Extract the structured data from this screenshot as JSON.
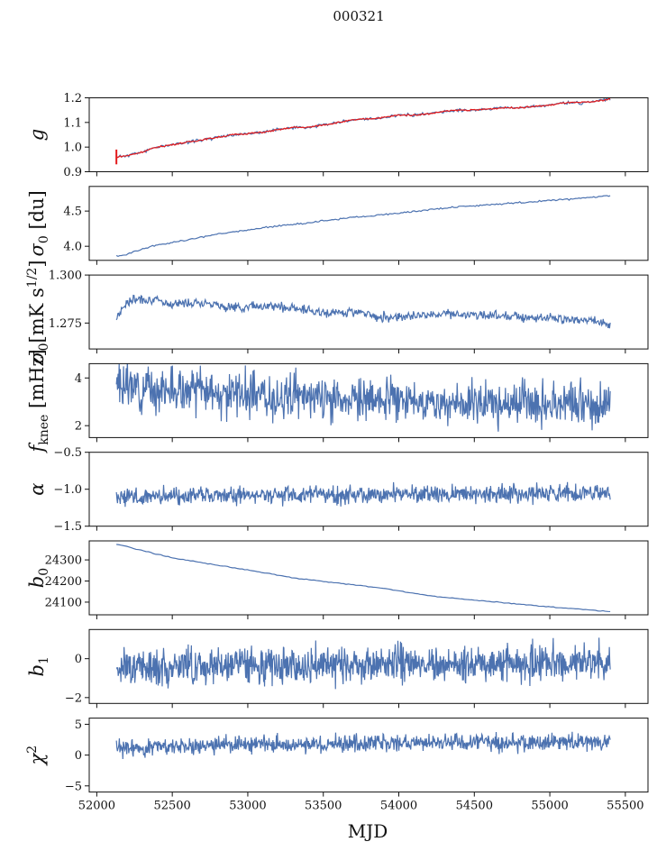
{
  "figure": {
    "title": "000321",
    "xlabel": "MJD"
  },
  "chart_data": [
    {
      "type": "line",
      "ylabel": "g",
      "x_range": [
        51950,
        55650
      ],
      "ylim": [
        0.9,
        1.2
      ],
      "y_ticks": [
        0.9,
        1.0,
        1.1,
        1.2
      ],
      "y_tick_labels": [
        "0.9",
        "1.0",
        "1.1",
        "1.2"
      ],
      "series": [
        {
          "color": "#4c72b0",
          "x": [
            52130,
            52200,
            52300,
            52400,
            52500,
            52600,
            52700,
            52800,
            52900,
            53000,
            53100,
            53200,
            53300,
            53400,
            53500,
            53600,
            53700,
            53800,
            53900,
            54000,
            54100,
            54200,
            54300,
            54400,
            54500,
            54600,
            54700,
            54800,
            54900,
            55000,
            55100,
            55200,
            55300,
            55400
          ],
          "y": [
            0.96,
            0.965,
            0.98,
            1.0,
            1.01,
            1.02,
            1.03,
            1.04,
            1.05,
            1.055,
            1.06,
            1.07,
            1.08,
            1.08,
            1.09,
            1.1,
            1.11,
            1.115,
            1.12,
            1.13,
            1.13,
            1.135,
            1.145,
            1.15,
            1.15,
            1.155,
            1.16,
            1.16,
            1.165,
            1.17,
            1.18,
            1.18,
            1.185,
            1.195
          ]
        }
      ],
      "noise": {
        "amp": 0.003,
        "n": 400,
        "x_start": 52130,
        "x_end": 55400,
        "color": "#e31a1c",
        "seed": 11
      }
    },
    {
      "type": "line",
      "ylabel": "σ0 [du]",
      "x_range": [
        51950,
        55650
      ],
      "ylim": [
        3.8,
        4.85
      ],
      "y_ticks": [
        4.0,
        4.5
      ],
      "y_tick_labels": [
        "4.0",
        "4.5"
      ],
      "series": [
        {
          "color": "#4c72b0",
          "x": [
            52130,
            52200,
            52300,
            52400,
            52600,
            52800,
            53000,
            53200,
            53400,
            53600,
            53800,
            54000,
            54200,
            54400,
            54600,
            54800,
            55000,
            55200,
            55400
          ],
          "y": [
            3.86,
            3.88,
            3.96,
            4.02,
            4.09,
            4.17,
            4.23,
            4.29,
            4.33,
            4.39,
            4.43,
            4.47,
            4.52,
            4.56,
            4.59,
            4.62,
            4.65,
            4.68,
            4.72
          ]
        }
      ],
      "noise": {
        "amp": 0.006,
        "n": 300,
        "x_start": 52130,
        "x_end": 55400,
        "seed": 5
      }
    },
    {
      "type": "line",
      "ylabel": "σ0[mK s^1/2]",
      "x_range": [
        51950,
        55650
      ],
      "ylim": [
        1.2615,
        1.3
      ],
      "y_ticks": [
        1.275,
        1.3
      ],
      "y_tick_labels": [
        "1.275",
        "1.300"
      ],
      "series": [
        {
          "color": "#4c72b0",
          "x": [
            52130,
            52200,
            52300,
            52500,
            52700,
            52900,
            53100,
            53300,
            53500,
            53700,
            53900,
            54100,
            54300,
            54500,
            54700,
            54900,
            55100,
            55300,
            55400
          ],
          "y": [
            1.278,
            1.286,
            1.288,
            1.285,
            1.286,
            1.283,
            1.284,
            1.283,
            1.28,
            1.281,
            1.278,
            1.279,
            1.28,
            1.279,
            1.279,
            1.278,
            1.277,
            1.276,
            1.274
          ]
        }
      ],
      "noise": {
        "amp": 0.0012,
        "n": 700,
        "x_start": 52130,
        "x_end": 55400,
        "seed": 7
      }
    },
    {
      "type": "line",
      "ylabel": "f_knee [mHz]",
      "x_range": [
        51950,
        55650
      ],
      "ylim": [
        1.5,
        4.6
      ],
      "y_ticks": [
        2,
        4
      ],
      "y_tick_labels": [
        "2",
        "4"
      ],
      "series": [
        {
          "color": "#4c72b0",
          "x": [
            52130,
            52500,
            53000,
            53500,
            54000,
            54500,
            55000,
            55400
          ],
          "y": [
            3.7,
            3.5,
            3.3,
            3.15,
            3.0,
            2.95,
            2.95,
            2.9
          ]
        }
      ],
      "noise": {
        "amp": 0.45,
        "n": 900,
        "x_start": 52130,
        "x_end": 55400,
        "seed": 3
      }
    },
    {
      "type": "line",
      "ylabel": "α",
      "x_range": [
        51950,
        55650
      ],
      "ylim": [
        -1.5,
        -0.5
      ],
      "y_ticks": [
        -1.5,
        -1.0,
        -0.5
      ],
      "y_tick_labels": [
        "−1.5",
        "−1.0",
        "−0.5"
      ],
      "series": [
        {
          "color": "#4c72b0",
          "x": [
            52130,
            55400
          ],
          "y": [
            -1.1,
            -1.05
          ]
        }
      ],
      "noise": {
        "amp": 0.06,
        "n": 900,
        "x_start": 52130,
        "x_end": 55400,
        "seed": 13
      }
    },
    {
      "type": "line",
      "ylabel": "b0",
      "x_range": [
        51950,
        55650
      ],
      "ylim": [
        24040,
        24390
      ],
      "y_ticks": [
        24100,
        24200,
        24300
      ],
      "y_tick_labels": [
        "24100",
        "24200",
        "24300"
      ],
      "series": [
        {
          "color": "#4c72b0",
          "x": [
            52130,
            52300,
            52500,
            52800,
            53100,
            53300,
            53600,
            53900,
            54200,
            54500,
            54800,
            55100,
            55400
          ],
          "y": [
            24375,
            24345,
            24310,
            24275,
            24240,
            24215,
            24190,
            24165,
            24130,
            24110,
            24090,
            24072,
            24055
          ]
        }
      ],
      "noise": {
        "amp": 1.0,
        "n": 200,
        "x_start": 52130,
        "x_end": 55400,
        "seed": 2
      }
    },
    {
      "type": "line",
      "ylabel": "b1",
      "x_range": [
        51950,
        55650
      ],
      "ylim": [
        -2.3,
        1.5
      ],
      "y_ticks": [
        -2,
        0
      ],
      "y_tick_labels": [
        "−2",
        "0"
      ],
      "series": [
        {
          "color": "#4c72b0",
          "x": [
            52130,
            55400
          ],
          "y": [
            -0.4,
            -0.2
          ]
        }
      ],
      "noise": {
        "amp": 0.45,
        "n": 1100,
        "x_start": 52130,
        "x_end": 55400,
        "seed": 17
      }
    },
    {
      "type": "line",
      "ylabel": "χ^2",
      "x_range": [
        51950,
        55650
      ],
      "ylim": [
        -6,
        6
      ],
      "y_ticks": [
        -5,
        0,
        5
      ],
      "y_tick_labels": [
        "−5",
        "0",
        "5"
      ],
      "series": [
        {
          "color": "#4c72b0",
          "x": [
            52130,
            52500,
            53000,
            53500,
            54000,
            54500,
            55000,
            55400
          ],
          "y": [
            1.0,
            1.5,
            1.7,
            1.8,
            1.9,
            2.0,
            2.0,
            2.2
          ]
        }
      ],
      "noise": {
        "amp": 0.7,
        "n": 1000,
        "x_start": 52130,
        "x_end": 55400,
        "seed": 23
      }
    }
  ],
  "x_ticks": [
    52000,
    52500,
    53000,
    53500,
    54000,
    54500,
    55000,
    55500
  ],
  "x_tick_labels": [
    "52000",
    "52500",
    "53000",
    "53500",
    "54000",
    "54500",
    "55000",
    "55500"
  ]
}
